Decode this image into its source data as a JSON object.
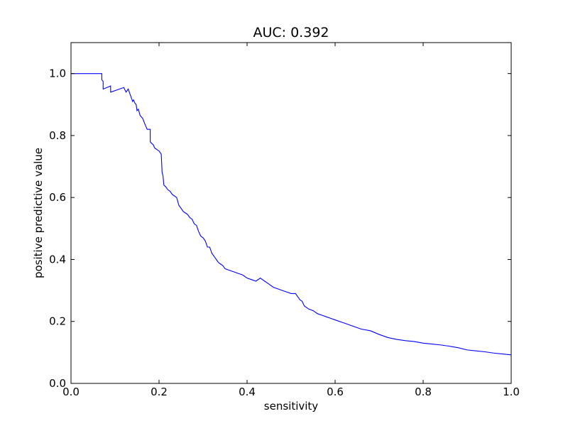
{
  "chart_data": {
    "type": "line",
    "title": "AUC: 0.392",
    "xlabel": "sensitivity",
    "ylabel": "positive predictive value",
    "xlim": [
      0.0,
      1.0
    ],
    "ylim": [
      0.0,
      1.1
    ],
    "xticks": [
      "0.0",
      "0.2",
      "0.4",
      "0.6",
      "0.8",
      "1.0"
    ],
    "yticks": [
      "0.0",
      "0.2",
      "0.4",
      "0.6",
      "0.8",
      "1.0"
    ],
    "grid": false,
    "line_color": "#0000ff",
    "series": [
      {
        "x": [
          0.0,
          0.07,
          0.07,
          0.073,
          0.073,
          0.09,
          0.09,
          0.12,
          0.125,
          0.13,
          0.135,
          0.14,
          0.142,
          0.145,
          0.148,
          0.15,
          0.153,
          0.157,
          0.16,
          0.163,
          0.167,
          0.17,
          0.173,
          0.177,
          0.18,
          0.18,
          0.183,
          0.187,
          0.19,
          0.195,
          0.2,
          0.205,
          0.207,
          0.209,
          0.211,
          0.215,
          0.22,
          0.225,
          0.23,
          0.235,
          0.24,
          0.245,
          0.25,
          0.255,
          0.26,
          0.265,
          0.27,
          0.275,
          0.28,
          0.285,
          0.29,
          0.295,
          0.3,
          0.305,
          0.31,
          0.315,
          0.32,
          0.325,
          0.33,
          0.335,
          0.34,
          0.345,
          0.35,
          0.36,
          0.37,
          0.38,
          0.39,
          0.4,
          0.41,
          0.42,
          0.43,
          0.44,
          0.45,
          0.46,
          0.47,
          0.48,
          0.49,
          0.5,
          0.51,
          0.515,
          0.52,
          0.525,
          0.53,
          0.535,
          0.54,
          0.55,
          0.56,
          0.57,
          0.58,
          0.59,
          0.6,
          0.62,
          0.64,
          0.66,
          0.68,
          0.7,
          0.72,
          0.74,
          0.76,
          0.78,
          0.8,
          0.82,
          0.84,
          0.86,
          0.88,
          0.9,
          0.92,
          0.94,
          0.96,
          0.98,
          1.0
        ],
        "y": [
          1.0,
          1.0,
          0.98,
          0.975,
          0.95,
          0.96,
          0.94,
          0.955,
          0.94,
          0.95,
          0.93,
          0.91,
          0.915,
          0.905,
          0.9,
          0.88,
          0.885,
          0.865,
          0.86,
          0.855,
          0.84,
          0.83,
          0.82,
          0.82,
          0.82,
          0.78,
          0.775,
          0.77,
          0.76,
          0.755,
          0.75,
          0.74,
          0.68,
          0.67,
          0.64,
          0.635,
          0.625,
          0.62,
          0.61,
          0.605,
          0.6,
          0.575,
          0.565,
          0.555,
          0.55,
          0.545,
          0.535,
          0.53,
          0.515,
          0.51,
          0.49,
          0.475,
          0.47,
          0.46,
          0.44,
          0.44,
          0.42,
          0.41,
          0.4,
          0.39,
          0.385,
          0.38,
          0.37,
          0.365,
          0.36,
          0.355,
          0.35,
          0.34,
          0.335,
          0.33,
          0.34,
          0.33,
          0.32,
          0.31,
          0.305,
          0.3,
          0.295,
          0.29,
          0.29,
          0.28,
          0.27,
          0.265,
          0.25,
          0.245,
          0.24,
          0.235,
          0.225,
          0.22,
          0.215,
          0.21,
          0.205,
          0.195,
          0.185,
          0.175,
          0.17,
          0.158,
          0.148,
          0.142,
          0.138,
          0.135,
          0.13,
          0.127,
          0.124,
          0.12,
          0.115,
          0.108,
          0.105,
          0.102,
          0.098,
          0.095,
          0.092
        ]
      }
    ]
  }
}
